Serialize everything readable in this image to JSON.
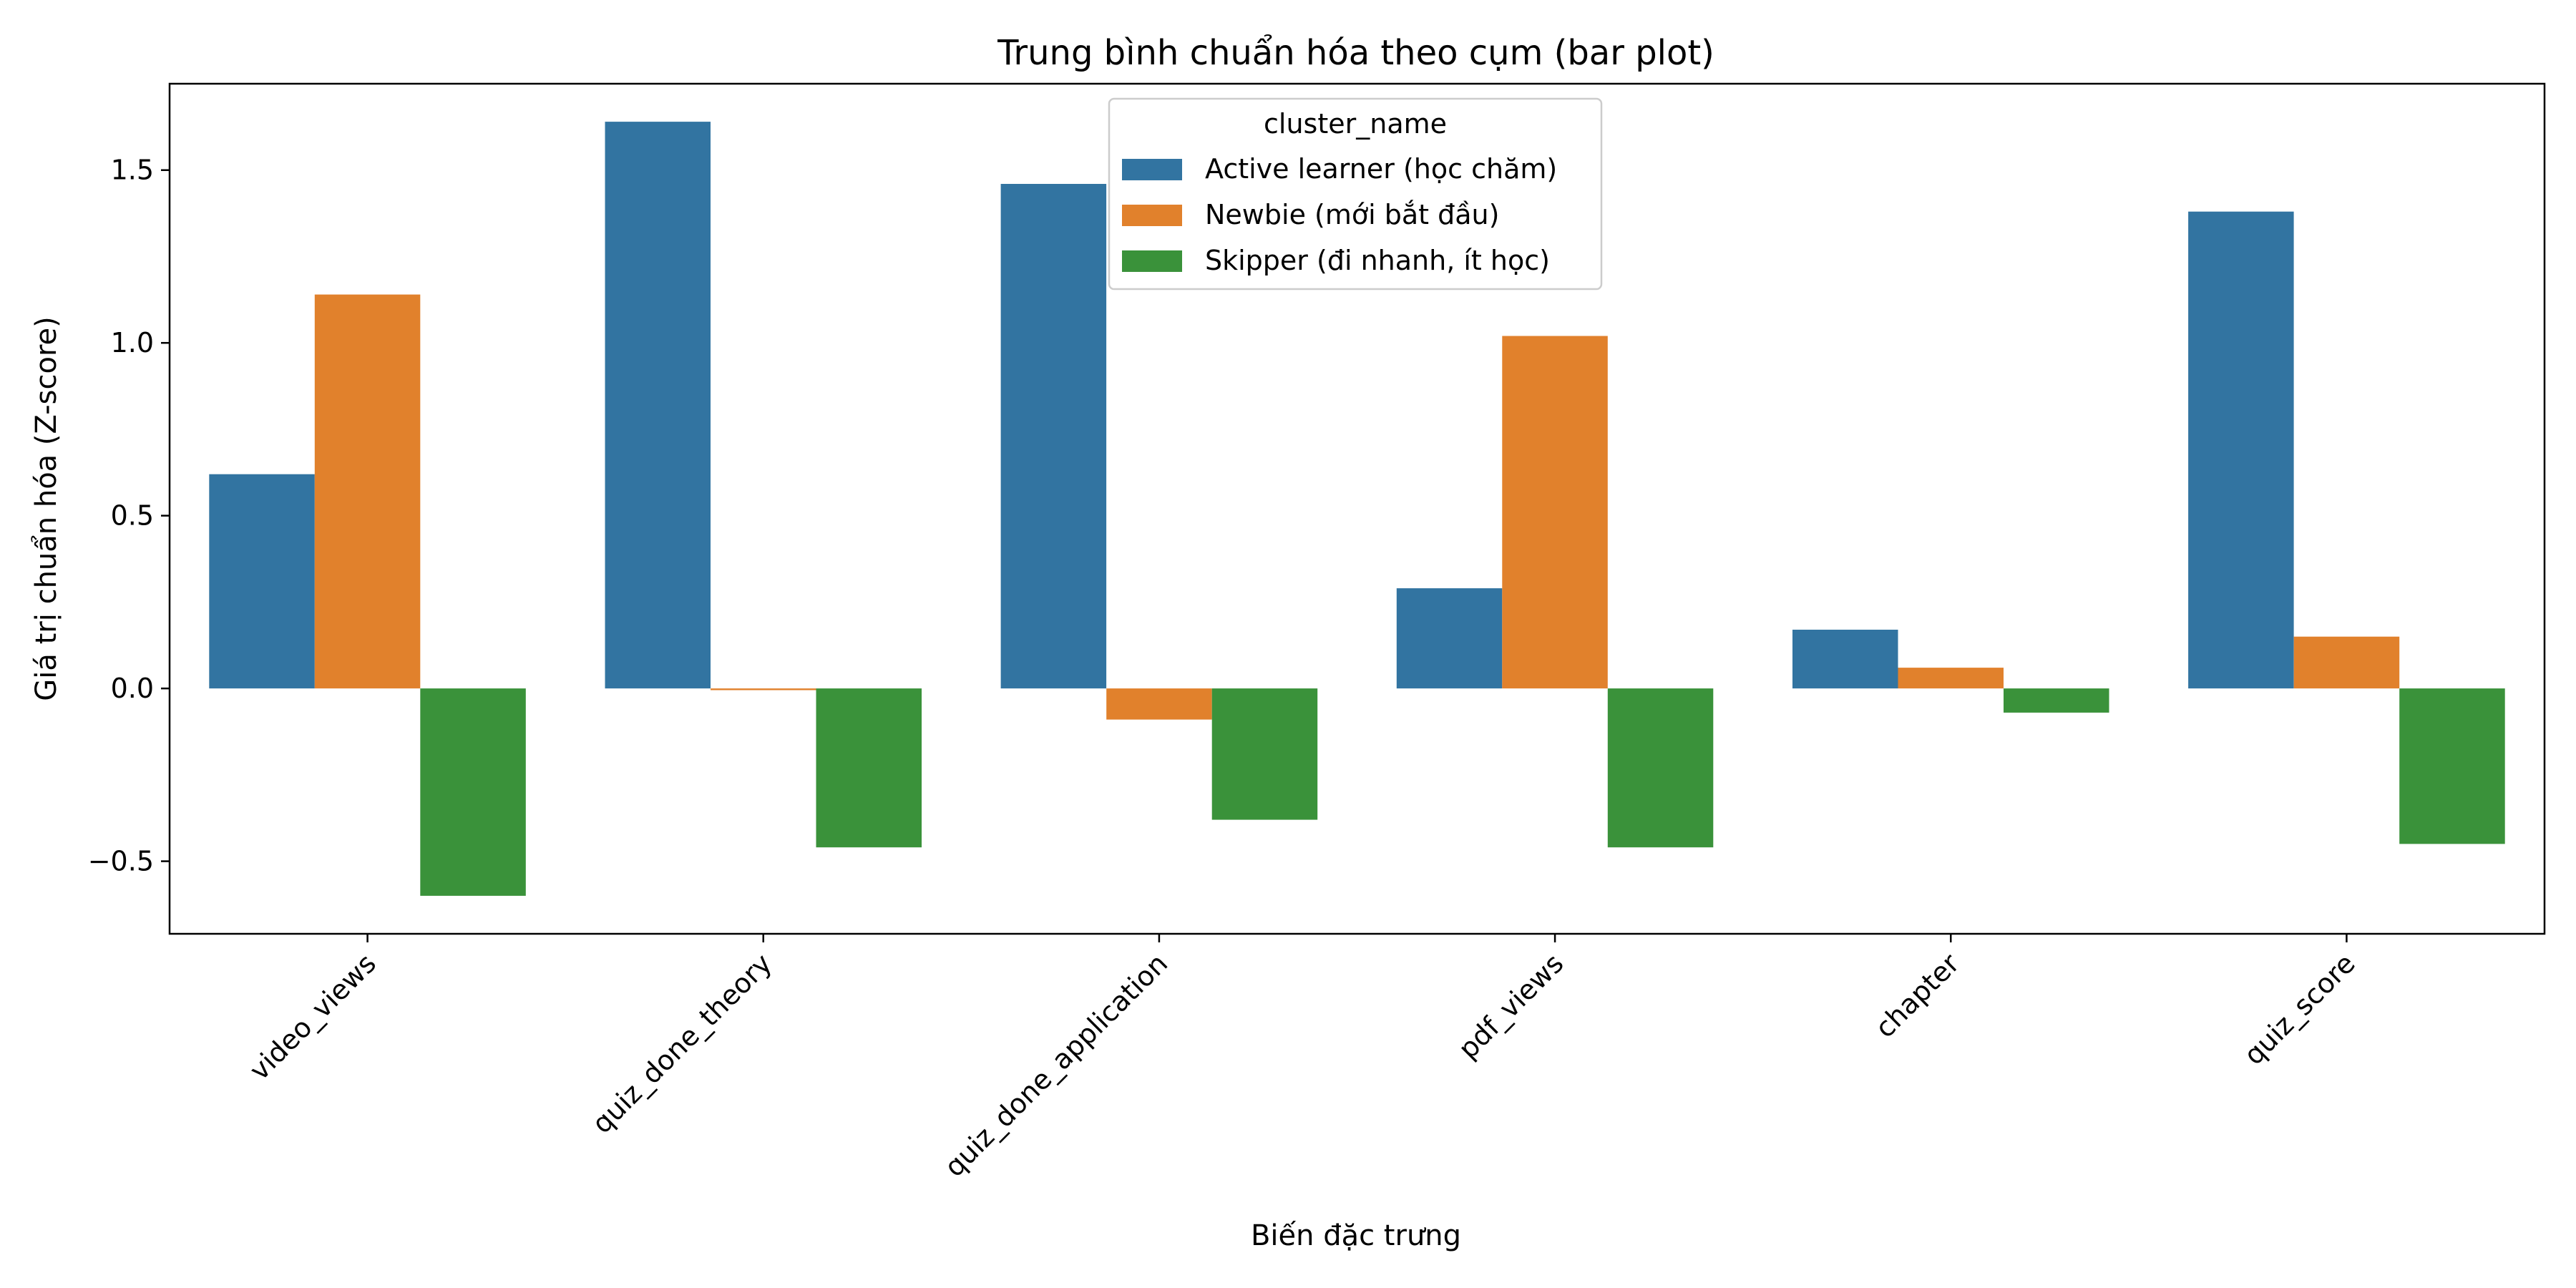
{
  "chart_data": {
    "type": "bar",
    "title": "Trung bình chuẩn hóa theo cụm (bar plot)",
    "xlabel": "Biến đặc trưng",
    "ylabel": "Giá trị chuẩn hóa (Z-score)",
    "ylim": [
      -0.71,
      1.75
    ],
    "yticks": [
      -0.5,
      0.0,
      0.5,
      1.0,
      1.5
    ],
    "ytick_labels": [
      "−0.5",
      "0.0",
      "0.5",
      "1.0",
      "1.5"
    ],
    "categories": [
      "video_views",
      "quiz_done_theory",
      "quiz_done_application",
      "pdf_views",
      "chapter",
      "quiz_score"
    ],
    "legend_title": "cluster_name",
    "legend_position": "top-center",
    "grid": false,
    "series": [
      {
        "name": "Active learner (học chăm)",
        "color": "#3274a1",
        "values": [
          0.62,
          1.64,
          1.46,
          0.29,
          0.17,
          1.38
        ]
      },
      {
        "name": "Newbie (mới bắt đầu)",
        "color": "#e1812c",
        "values": [
          1.14,
          -0.005,
          -0.09,
          1.02,
          0.06,
          0.15
        ]
      },
      {
        "name": "Skipper (đi nhanh, ít học)",
        "color": "#3a923a",
        "values": [
          -0.6,
          -0.46,
          -0.38,
          -0.46,
          -0.07,
          -0.45
        ]
      }
    ]
  }
}
